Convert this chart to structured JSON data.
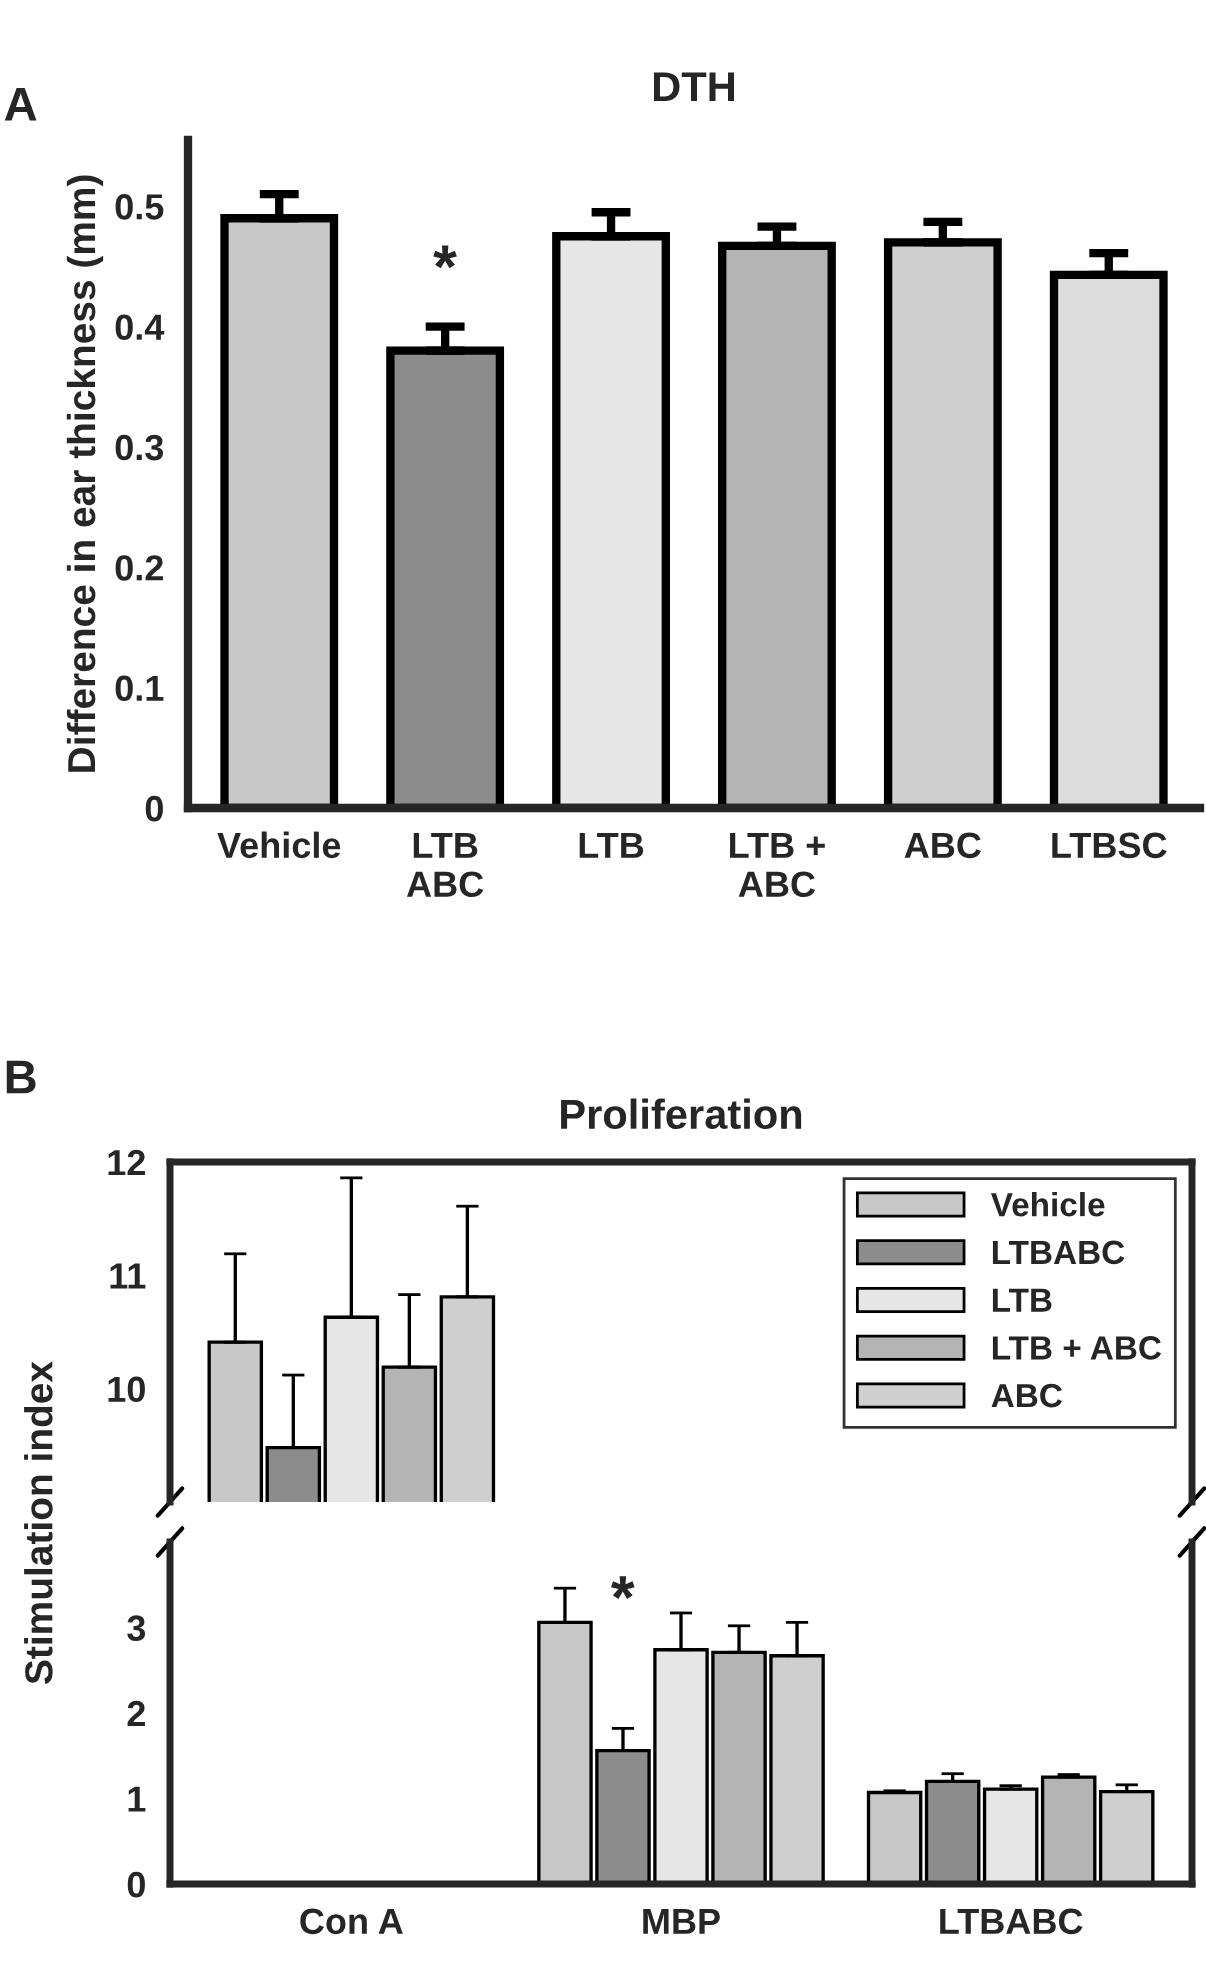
{
  "chart_data": [
    {
      "type": "bar",
      "title": "DTH",
      "ylabel": "Difference in ear thickness (mm)",
      "categories": [
        "Vehicle",
        "LTB\nABC",
        "LTB",
        "LTB +\nABC",
        "ABC",
        "LTBSC"
      ],
      "values": [
        0.49,
        0.38,
        0.475,
        0.467,
        0.47,
        0.443
      ],
      "errors": [
        [
          0.49,
          0.51
        ],
        [
          0.38,
          0.4
        ],
        [
          0.475,
          0.495
        ],
        [
          0.467,
          0.483
        ],
        [
          0.47,
          0.487
        ],
        [
          0.443,
          0.461
        ]
      ],
      "colors": [
        "#c8c8c8",
        "#8c8c8c",
        "#e6e6e6",
        "#b4b4b4",
        "#cfcfcf",
        "#dcdcdc"
      ],
      "ylim": [
        0,
        0.555
      ],
      "yticks": [
        0,
        0.1,
        0.2,
        0.3,
        0.4,
        0.5
      ],
      "annotations": [
        "A",
        "*"
      ],
      "legend": false
    },
    {
      "type": "bar",
      "title": "Proliferation",
      "ylabel": "Stimulation index",
      "series": [
        {
          "name": "Vehicle",
          "color": "#c8c8c8",
          "values": [
            10.41,
            null,
            null
          ],
          "errors": [
            [
              10.41,
              11.19
            ],
            null,
            null
          ]
        },
        {
          "name": "LTBABC",
          "color": "#8c8c8c",
          "values": [
            9.48,
            null,
            null
          ],
          "errors": [
            [
              9.48,
              10.12
            ],
            null,
            null
          ]
        },
        {
          "name": "LTB",
          "color": "#e6e6e6",
          "values": [
            10.63,
            null,
            null
          ],
          "errors": [
            [
              10.63,
              11.86
            ],
            null,
            null
          ]
        },
        {
          "name": "LTB + ABC",
          "color": "#b4b4b4",
          "values": [
            10.19,
            null,
            null
          ],
          "errors": [
            [
              10.19,
              10.83
            ],
            null,
            null
          ]
        },
        {
          "name": "ABC",
          "color": "#cfcfcf",
          "values": [
            10.81,
            null,
            null
          ],
          "errors": [
            [
              10.81,
              11.61
            ],
            null,
            null
          ]
        }
      ],
      "ylim": [
        9.0,
        12
      ],
      "yticks": [
        10,
        11,
        12
      ],
      "tick_labels": "y",
      "legend": "top right",
      "annotations": [
        "B"
      ]
    },
    {
      "type": "bar",
      "categories": [
        "Con A",
        "MBP",
        "LTBABC"
      ],
      "series": [
        {
          "color": "#c8c8c8",
          "values": [
            null,
            3.06,
            1.07
          ],
          "errors": [
            null,
            [
              3.06,
              3.46
            ],
            [
              1.07,
              1.09
            ]
          ]
        },
        {
          "color": "#8c8c8c",
          "values": [
            null,
            1.56,
            1.2
          ],
          "errors": [
            null,
            [
              1.56,
              1.82
            ],
            [
              1.2,
              1.29
            ]
          ]
        },
        {
          "color": "#e6e6e6",
          "values": [
            null,
            2.74,
            1.11
          ],
          "errors": [
            null,
            [
              2.74,
              3.17
            ],
            [
              1.11,
              1.15
            ]
          ]
        },
        {
          "color": "#b4b4b4",
          "values": [
            null,
            2.71,
            1.25
          ],
          "errors": [
            null,
            [
              2.71,
              3.02
            ],
            [
              1.25,
              1.28
            ]
          ]
        },
        {
          "color": "#cfcfcf",
          "values": [
            null,
            2.67,
            1.08
          ],
          "errors": [
            null,
            [
              2.67,
              3.06
            ],
            [
              1.08,
              1.16
            ]
          ]
        }
      ],
      "ylim": [
        0,
        4
      ],
      "yticks": [
        0,
        1,
        2,
        3
      ],
      "annotations": [
        "*"
      ],
      "legend": false
    }
  ]
}
